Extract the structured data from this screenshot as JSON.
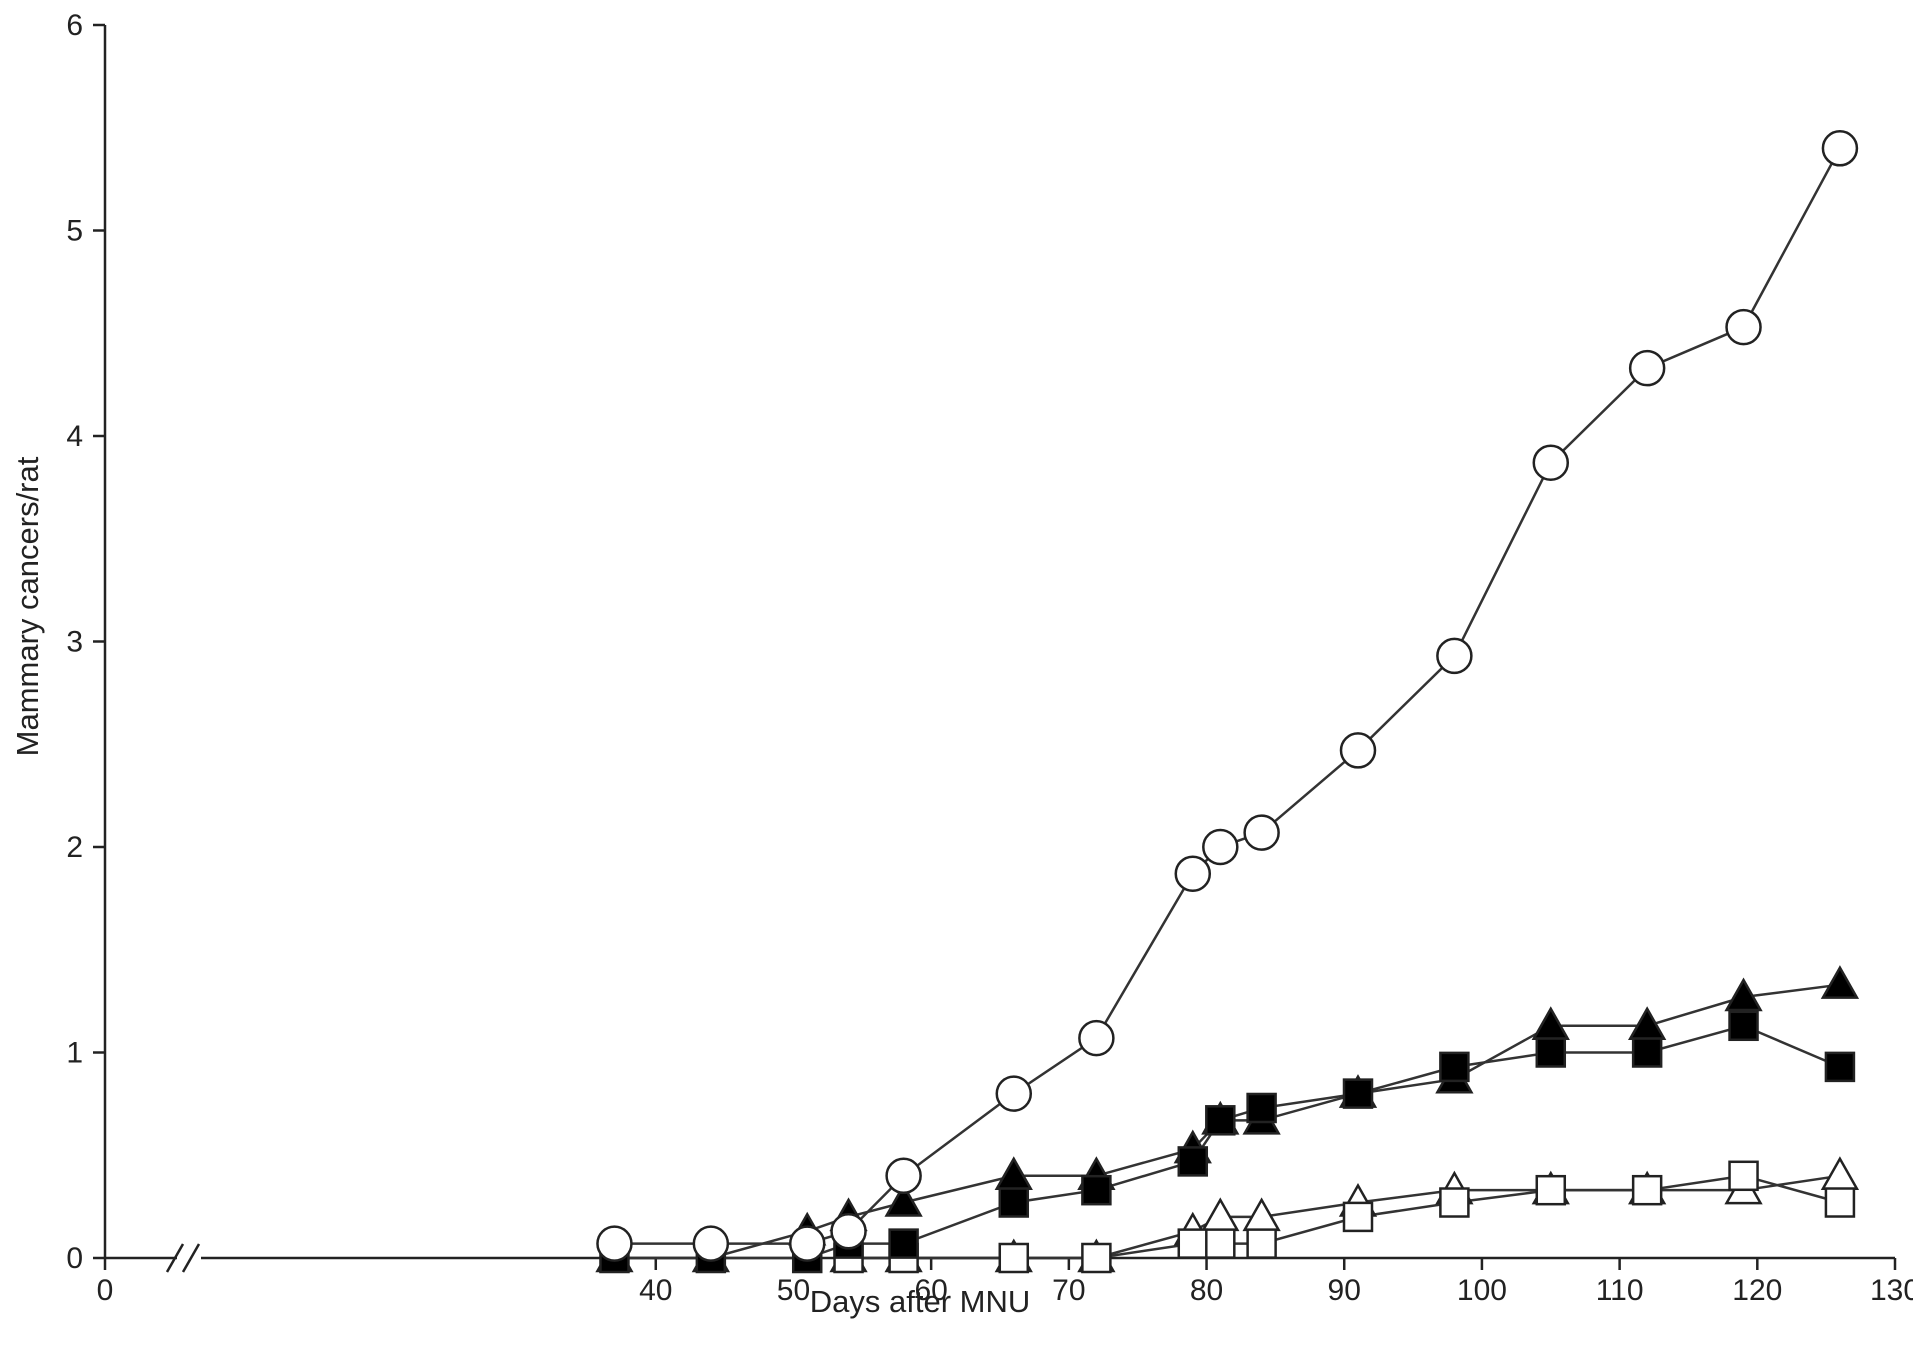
{
  "chart_data": {
    "type": "line",
    "title": "",
    "xlabel": "Days after MNU",
    "ylabel": "Mammary cancers/rat",
    "xlim": [
      0,
      130
    ],
    "ylim": [
      0,
      6
    ],
    "axis_break_x": true,
    "grid": false,
    "legend": "none",
    "x_ticks": [
      0,
      40,
      50,
      60,
      70,
      80,
      90,
      100,
      110,
      120,
      130
    ],
    "y_ticks": [
      0,
      1,
      2,
      3,
      4,
      5,
      6
    ],
    "series": [
      {
        "marker": "circle",
        "fill": "#ffffff",
        "x": [
          37,
          44,
          51,
          54,
          58,
          66,
          72,
          79,
          81,
          84,
          91,
          98,
          105,
          112,
          119,
          126
        ],
        "y": [
          0.07,
          0.07,
          0.07,
          0.13,
          0.4,
          0.8,
          1.07,
          1.87,
          2.0,
          2.07,
          2.47,
          2.93,
          3.87,
          4.33,
          4.53,
          5.4
        ]
      },
      {
        "marker": "triangle",
        "fill": "#000000",
        "x": [
          37,
          44,
          51,
          54,
          58,
          66,
          72,
          79,
          81,
          84,
          91,
          98,
          105,
          112,
          119,
          126
        ],
        "y": [
          0,
          0,
          0.13,
          0.2,
          0.27,
          0.4,
          0.4,
          0.53,
          0.67,
          0.67,
          0.8,
          0.87,
          1.13,
          1.13,
          1.27,
          1.33
        ]
      },
      {
        "marker": "square",
        "fill": "#000000",
        "x": [
          37,
          44,
          51,
          54,
          58,
          66,
          72,
          79,
          81,
          84,
          91,
          98,
          105,
          112,
          119,
          126
        ],
        "y": [
          0,
          0,
          0,
          0.07,
          0.07,
          0.27,
          0.33,
          0.47,
          0.67,
          0.73,
          0.8,
          0.93,
          1.0,
          1.0,
          1.13,
          0.93
        ]
      },
      {
        "marker": "triangle",
        "fill": "#ffffff",
        "x": [
          54,
          58,
          66,
          72,
          79,
          81,
          84,
          91,
          98,
          105,
          112,
          119,
          126
        ],
        "y": [
          0,
          0,
          0,
          0,
          0.13,
          0.2,
          0.2,
          0.27,
          0.33,
          0.33,
          0.33,
          0.33,
          0.4
        ]
      },
      {
        "marker": "square",
        "fill": "#ffffff",
        "x": [
          54,
          58,
          66,
          72,
          79,
          81,
          84,
          91,
          98,
          105,
          112,
          119,
          126
        ],
        "y": [
          0,
          0,
          0,
          0,
          0.07,
          0.07,
          0.07,
          0.2,
          0.27,
          0.33,
          0.33,
          0.4,
          0.27
        ]
      }
    ]
  }
}
